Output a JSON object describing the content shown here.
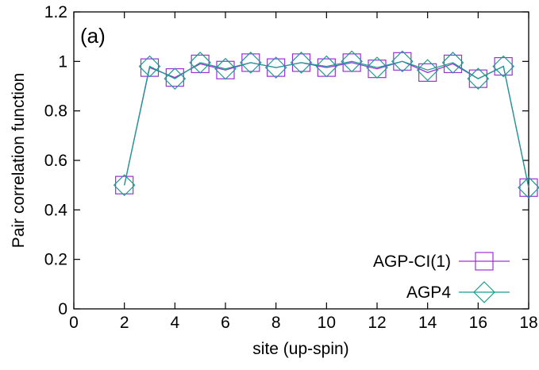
{
  "chart_data": {
    "type": "line",
    "panel_label": "(a)",
    "title": "",
    "xlabel": "site (up-spin)",
    "ylabel": "Pair correlation function",
    "xlim": [
      0,
      18
    ],
    "ylim": [
      0,
      1.2
    ],
    "x_ticks": [
      0,
      2,
      4,
      6,
      8,
      10,
      12,
      14,
      16,
      18
    ],
    "y_ticks": [
      0,
      0.2,
      0.4,
      0.6,
      0.8,
      1,
      1.2
    ],
    "x_tick_labels": [
      "0",
      "2",
      "4",
      "6",
      "8",
      "10",
      "12",
      "14",
      "16",
      "18"
    ],
    "y_tick_labels": [
      "0",
      "0.2",
      "0.4",
      "0.6",
      "0.8",
      "1",
      "1.2"
    ],
    "grid": false,
    "legend_position": "bottom-right",
    "x": [
      2,
      3,
      4,
      5,
      6,
      7,
      8,
      9,
      10,
      11,
      12,
      13,
      14,
      15,
      16,
      17,
      18
    ],
    "series": [
      {
        "name": "AGP-CI(1)",
        "marker": "square",
        "color": "#9b30d9",
        "values": [
          0.5,
          0.975,
          0.935,
          0.99,
          0.965,
          0.995,
          0.975,
          0.995,
          0.975,
          0.995,
          0.97,
          1.0,
          0.955,
          0.99,
          0.93,
          0.98,
          0.49
        ]
      },
      {
        "name": "AGP4",
        "marker": "diamond",
        "color": "#1a9e8f",
        "values": [
          0.5,
          0.98,
          0.93,
          0.995,
          0.97,
          0.995,
          0.975,
          0.995,
          0.98,
          1.0,
          0.975,
          1.0,
          0.965,
          0.995,
          0.93,
          0.98,
          0.49
        ]
      }
    ]
  }
}
